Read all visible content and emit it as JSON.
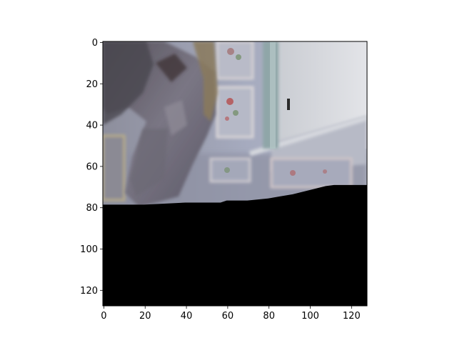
{
  "chart_data": {
    "type": "image",
    "image_size": [
      128,
      128
    ],
    "xlim": [
      -0.5,
      127.5
    ],
    "ylim": [
      127.5,
      -0.5
    ],
    "xticks": [
      0,
      20,
      40,
      60,
      80,
      100,
      120
    ],
    "yticks": [
      0,
      20,
      40,
      60,
      80,
      100,
      120
    ],
    "xtick_labels": [
      "0",
      "20",
      "40",
      "60",
      "80",
      "100",
      "120"
    ],
    "ytick_labels": [
      "0",
      "20",
      "40",
      "60",
      "80",
      "100",
      "120"
    ],
    "title": "",
    "xlabel": "",
    "ylabel": "",
    "grid": false,
    "content": {
      "description": "blurry indoor photo: grey figure on left, ornate framed wall panels, window with light on upper right; bottom rows masked black",
      "dark_region_top_edge": [
        [
          0,
          79
        ],
        [
          20,
          79
        ],
        [
          40,
          78
        ],
        [
          57,
          78
        ],
        [
          60,
          77
        ],
        [
          70,
          77
        ],
        [
          80,
          76
        ],
        [
          86,
          75
        ],
        [
          92,
          74
        ],
        [
          96,
          73
        ],
        [
          100,
          72
        ],
        [
          104,
          71
        ],
        [
          108,
          70
        ],
        [
          112,
          69.5
        ],
        [
          128,
          69.5
        ]
      ],
      "colors": {
        "masked": "#000000",
        "wall": "#a3a8bc",
        "window": "#d8dadf",
        "figure": "#6f6c78",
        "hair": "#8a7a5c",
        "frame_trim": "#c8c2c6",
        "flower_red": "#b54c4c",
        "flower_green": "#6f8c63"
      }
    }
  }
}
